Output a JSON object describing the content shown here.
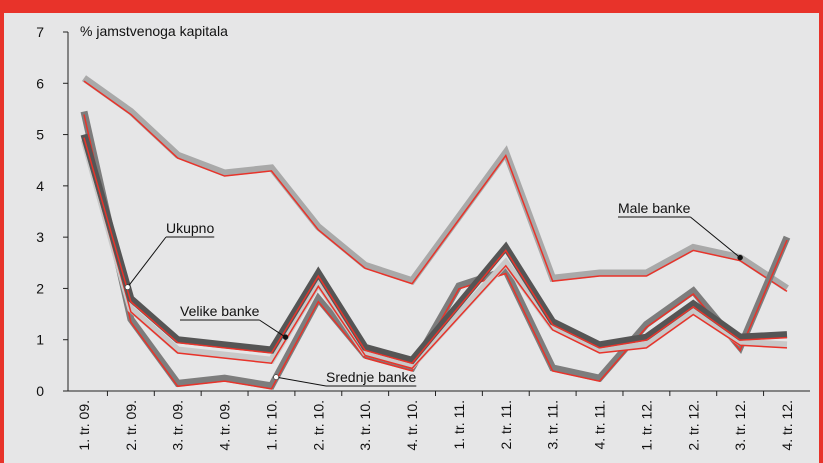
{
  "chart_data": {
    "type": "line",
    "y_axis_label": "% jamstvenoga kapitala",
    "categories": [
      "1. tr. 09.",
      "2. tr. 09.",
      "3. tr. 09.",
      "4. tr. 09.",
      "1. tr. 10.",
      "2. tr. 10.",
      "3. tr. 10.",
      "4. tr. 10.",
      "1. tr. 11.",
      "2. tr. 11.",
      "3. tr. 11.",
      "4. tr. 11.",
      "1. tr. 12.",
      "2. tr. 12.",
      "3. tr. 12.",
      "4. tr. 12."
    ],
    "series": [
      {
        "name": "Male banke",
        "color": "#a9a9a9",
        "values": [
          6.1,
          5.45,
          4.6,
          4.25,
          4.35,
          3.2,
          2.45,
          2.15,
          3.4,
          4.65,
          2.2,
          2.3,
          2.3,
          2.8,
          2.6,
          2.0
        ]
      },
      {
        "name": "Srednje banke",
        "color": "#7d7d7d",
        "values": [
          5.45,
          1.4,
          0.15,
          0.25,
          0.1,
          1.8,
          0.7,
          0.45,
          2.05,
          2.35,
          0.45,
          0.25,
          1.3,
          1.95,
          0.85,
          3.0
        ]
      },
      {
        "name": "Velike banke",
        "color": "#c9c9c9",
        "values": [
          4.9,
          1.6,
          0.8,
          0.7,
          0.6,
          2.1,
          0.75,
          0.5,
          1.5,
          2.5,
          1.25,
          0.8,
          0.9,
          1.55,
          0.95,
          0.9
        ]
      },
      {
        "name": "Ukupno",
        "color": "#555555",
        "values": [
          5.0,
          1.8,
          1.0,
          0.9,
          0.8,
          2.3,
          0.85,
          0.6,
          1.7,
          2.8,
          1.35,
          0.9,
          1.05,
          1.7,
          1.05,
          1.1
        ]
      }
    ],
    "shadow_color": "#e8332a",
    "ylim": [
      0,
      7
    ],
    "yticks": [
      0,
      1,
      2,
      3,
      4,
      5,
      6,
      7
    ]
  }
}
